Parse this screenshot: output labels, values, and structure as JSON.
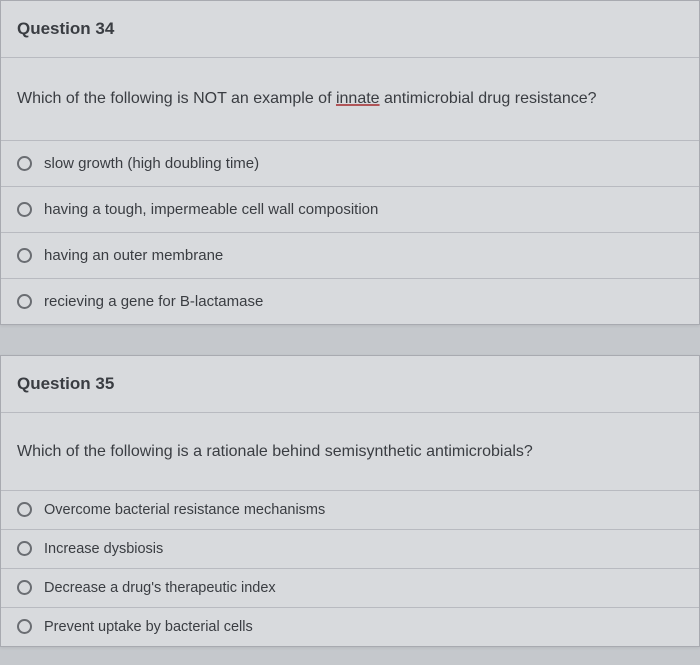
{
  "question34": {
    "header": "Question 34",
    "prompt_before": "Which of the following is NOT an example of ",
    "prompt_underlined": "innate",
    "prompt_after": " antimicrobial drug resistance?",
    "options": [
      "slow growth (high doubling time)",
      "having a tough, impermeable cell wall composition",
      "having an outer membrane",
      "recieving a gene for B-lactamase"
    ]
  },
  "question35": {
    "header": "Question 35",
    "prompt": "Which of the following is a rationale behind semisynthetic antimicrobials?",
    "options": [
      "Overcome bacterial resistance mechanisms",
      "Increase dysbiosis",
      "Decrease a drug's therapeutic index",
      "Prevent uptake by bacterial cells"
    ]
  },
  "colors": {
    "page_bg": "#c5c8cc",
    "card_bg": "#d8dadd",
    "border": "#a8aab0",
    "inner_border": "#b8bac0",
    "text": "#3a3d42",
    "underline": "#b05558",
    "radio_border": "#6a6d72"
  }
}
